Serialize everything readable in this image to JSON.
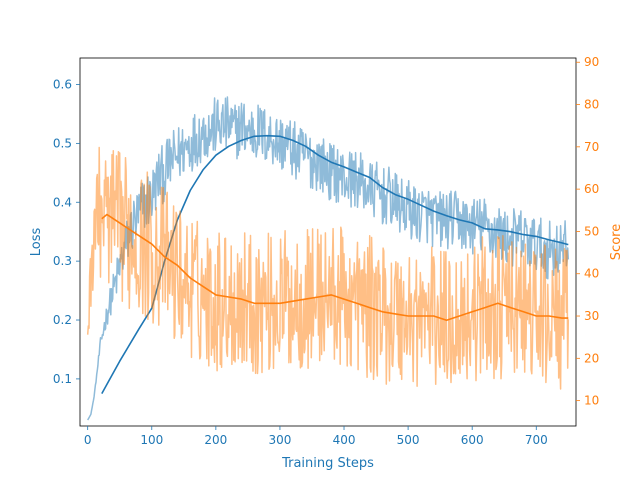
{
  "chart_data": {
    "type": "line",
    "title": "",
    "xlabel": "Training Steps",
    "ylabel_left": "Loss",
    "ylabel_right": "Score",
    "xlim": [
      -12,
      762
    ],
    "ylim_left": [
      0.02,
      0.645
    ],
    "ylim_right": [
      4,
      91
    ],
    "x_ticks": [
      0,
      100,
      200,
      300,
      400,
      500,
      600,
      700
    ],
    "y_left_ticks": [
      0.1,
      0.2,
      0.3,
      0.4,
      0.5,
      0.6
    ],
    "y_right_ticks": [
      10,
      20,
      30,
      40,
      50,
      60,
      70,
      80,
      90
    ],
    "grid": false,
    "legend": "none",
    "colors": {
      "loss": "#1f77b4",
      "score": "#ff7f0e",
      "text": "#1f77b4",
      "right_text": "#ff7f0e"
    },
    "x_count": 751,
    "series": [
      {
        "axis": "left",
        "style": "raw",
        "opacity": 0.5,
        "anchors_x": [
          0,
          5,
          10,
          20,
          30,
          40,
          50,
          60,
          70,
          80,
          90,
          100,
          110,
          120,
          130,
          140,
          150,
          160,
          170,
          180,
          190,
          200,
          210,
          220,
          230,
          240,
          250,
          260,
          270,
          280,
          290,
          300,
          310,
          320,
          330,
          340,
          350,
          360,
          370,
          380,
          390,
          400,
          410,
          420,
          430,
          440,
          450,
          460,
          470,
          480,
          490,
          500,
          510,
          520,
          530,
          540,
          550,
          560,
          570,
          580,
          590,
          600,
          610,
          620,
          630,
          640,
          650,
          660,
          670,
          680,
          690,
          700,
          710,
          720,
          730,
          740,
          750
        ],
        "anchors_y": [
          0.03,
          0.04,
          0.07,
          0.16,
          0.21,
          0.25,
          0.29,
          0.33,
          0.36,
          0.38,
          0.4,
          0.41,
          0.44,
          0.45,
          0.47,
          0.48,
          0.49,
          0.5,
          0.51,
          0.52,
          0.52,
          0.53,
          0.53,
          0.53,
          0.52,
          0.53,
          0.52,
          0.52,
          0.52,
          0.51,
          0.51,
          0.5,
          0.5,
          0.49,
          0.48,
          0.48,
          0.47,
          0.47,
          0.46,
          0.45,
          0.45,
          0.44,
          0.44,
          0.44,
          0.43,
          0.42,
          0.42,
          0.41,
          0.41,
          0.4,
          0.39,
          0.39,
          0.38,
          0.38,
          0.38,
          0.37,
          0.37,
          0.37,
          0.37,
          0.37,
          0.36,
          0.36,
          0.36,
          0.36,
          0.35,
          0.35,
          0.34,
          0.34,
          0.34,
          0.34,
          0.33,
          0.33,
          0.32,
          0.32,
          0.32,
          0.32,
          0.32
        ],
        "noise": [
          0,
          0,
          0,
          0.01,
          0.02,
          0.03,
          0.04,
          0.04,
          0.05,
          0.05,
          0.05,
          0.05,
          0.05,
          0.05,
          0.05,
          0.05,
          0.05,
          0.05,
          0.05,
          0.05,
          0.05,
          0.05,
          0.05,
          0.05,
          0.05,
          0.05,
          0.05,
          0.05,
          0.05,
          0.05,
          0.05,
          0.05,
          0.05,
          0.05,
          0.05,
          0.05,
          0.05,
          0.05,
          0.05,
          0.05,
          0.05,
          0.05,
          0.05,
          0.05,
          0.05,
          0.05,
          0.05,
          0.05,
          0.05,
          0.05,
          0.05,
          0.05,
          0.05,
          0.05,
          0.05,
          0.05,
          0.05,
          0.05,
          0.05,
          0.05,
          0.05,
          0.05,
          0.05,
          0.05,
          0.05,
          0.05,
          0.05,
          0.05,
          0.05,
          0.05,
          0.05,
          0.05,
          0.05,
          0.05,
          0.05,
          0.05,
          0.05
        ]
      },
      {
        "axis": "left",
        "style": "smooth",
        "opacity": 1,
        "x": [
          22,
          50,
          80,
          100,
          120,
          140,
          160,
          180,
          200,
          220,
          240,
          260,
          280,
          300,
          320,
          340,
          360,
          380,
          400,
          420,
          440,
          460,
          480,
          500,
          520,
          540,
          560,
          580,
          600,
          620,
          640,
          660,
          680,
          700,
          720,
          740,
          750
        ],
        "y": [
          0.075,
          0.13,
          0.185,
          0.22,
          0.3,
          0.37,
          0.42,
          0.455,
          0.48,
          0.495,
          0.505,
          0.512,
          0.513,
          0.512,
          0.505,
          0.495,
          0.48,
          0.468,
          0.46,
          0.451,
          0.442,
          0.425,
          0.413,
          0.405,
          0.395,
          0.385,
          0.377,
          0.37,
          0.365,
          0.355,
          0.353,
          0.35,
          0.345,
          0.342,
          0.336,
          0.331,
          0.328
        ]
      },
      {
        "axis": "right",
        "style": "raw",
        "opacity": 0.5,
        "anchors_x": [
          0,
          5,
          10,
          20,
          40,
          60,
          80,
          100,
          120,
          140,
          160,
          180,
          200,
          220,
          240,
          260,
          280,
          300,
          320,
          340,
          360,
          380,
          400,
          420,
          440,
          460,
          480,
          500,
          520,
          540,
          560,
          580,
          600,
          620,
          640,
          660,
          680,
          700,
          720,
          740,
          750
        ],
        "anchors_y": [
          26,
          40,
          52,
          55,
          52,
          50,
          48,
          46,
          43,
          40,
          37,
          35,
          34,
          34,
          34,
          33,
          33,
          33,
          34,
          34,
          35,
          35,
          34,
          33,
          32,
          31,
          30,
          30,
          30,
          30,
          29,
          30,
          31,
          32,
          32,
          32,
          31,
          30,
          30,
          29,
          29
        ],
        "noise": [
          4,
          8,
          14,
          16,
          18,
          18,
          18,
          18,
          18,
          17,
          17,
          17,
          17,
          17,
          17,
          17,
          17,
          17,
          17,
          17,
          17,
          17,
          17,
          17,
          17,
          17,
          17,
          17,
          17,
          17,
          17,
          17,
          17,
          17,
          17,
          17,
          17,
          17,
          17,
          17,
          17
        ]
      },
      {
        "axis": "right",
        "style": "smooth",
        "opacity": 1,
        "x": [
          22,
          30,
          40,
          60,
          80,
          100,
          120,
          140,
          160,
          180,
          200,
          220,
          240,
          260,
          280,
          300,
          320,
          340,
          360,
          380,
          400,
          420,
          440,
          460,
          480,
          500,
          520,
          540,
          560,
          580,
          600,
          620,
          640,
          660,
          680,
          700,
          720,
          740,
          750
        ],
        "y": [
          53,
          54,
          53,
          51,
          49,
          47,
          44,
          42,
          39,
          37,
          35,
          34.5,
          34,
          33,
          33,
          33,
          33.5,
          34,
          34.5,
          35,
          34,
          33,
          32,
          31,
          30.5,
          30,
          30,
          30,
          29,
          30,
          31,
          32,
          33,
          32,
          31,
          30,
          30,
          29.5,
          29.5
        ]
      }
    ]
  }
}
